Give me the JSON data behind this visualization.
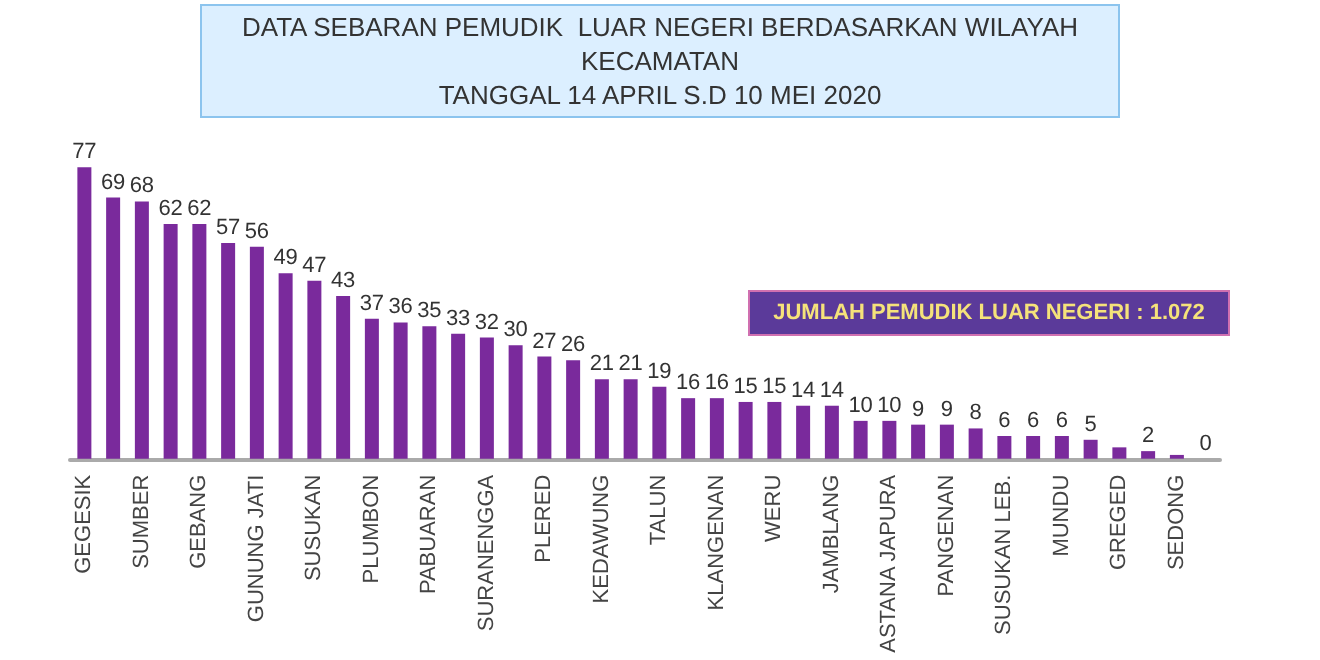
{
  "chart_data": {
    "type": "bar",
    "title": "DATA SEBARAN PEMUDIK  LUAR NEGERI BERDASARKAN WILAYAH\nKECAMATAN\nTANGGAL 14 APRIL S.D 10 MEI 2020",
    "categories": [
      "GEGESIK",
      null,
      "SUMBER",
      null,
      "GEBANG",
      null,
      "GUNUNG JATI",
      null,
      "SUSUKAN",
      null,
      "PLUMBON",
      null,
      "PABUARAN",
      null,
      "SURANENGGA",
      null,
      "PLERED",
      null,
      "KEDAWUNG",
      null,
      "TALUN",
      null,
      "KLANGENAN",
      null,
      "WERU",
      null,
      "JAMBLANG",
      null,
      "ASTANA JAPURA",
      null,
      "PANGENAN",
      null,
      "SUSUKAN LEB.",
      null,
      "MUNDU",
      null,
      "GREGED",
      null,
      "SEDONG",
      null
    ],
    "values": [
      77,
      69,
      68,
      62,
      62,
      57,
      56,
      49,
      47,
      43,
      37,
      36,
      35,
      33,
      32,
      30,
      27,
      26,
      21,
      21,
      19,
      16,
      16,
      15,
      15,
      14,
      14,
      10,
      10,
      9,
      9,
      8,
      6,
      6,
      6,
      5,
      3,
      2,
      1,
      0
    ],
    "value_labels": [
      "77",
      "69",
      "68",
      "62",
      "62",
      "57",
      "56",
      "49",
      "47",
      "43",
      "37",
      "36",
      "35",
      "33",
      "32",
      "30",
      "27",
      "26",
      "21",
      "21",
      "19",
      "16",
      "16",
      "15",
      "15",
      "14",
      "14",
      "10",
      "10",
      "9",
      "9",
      "8",
      "6",
      "6",
      "6",
      "5",
      null,
      "2",
      null,
      "0"
    ],
    "color": "#7a2a9c",
    "annotations": [
      "JUMLAH PEMUDIK LUAR NEGERI : 1.072"
    ]
  }
}
